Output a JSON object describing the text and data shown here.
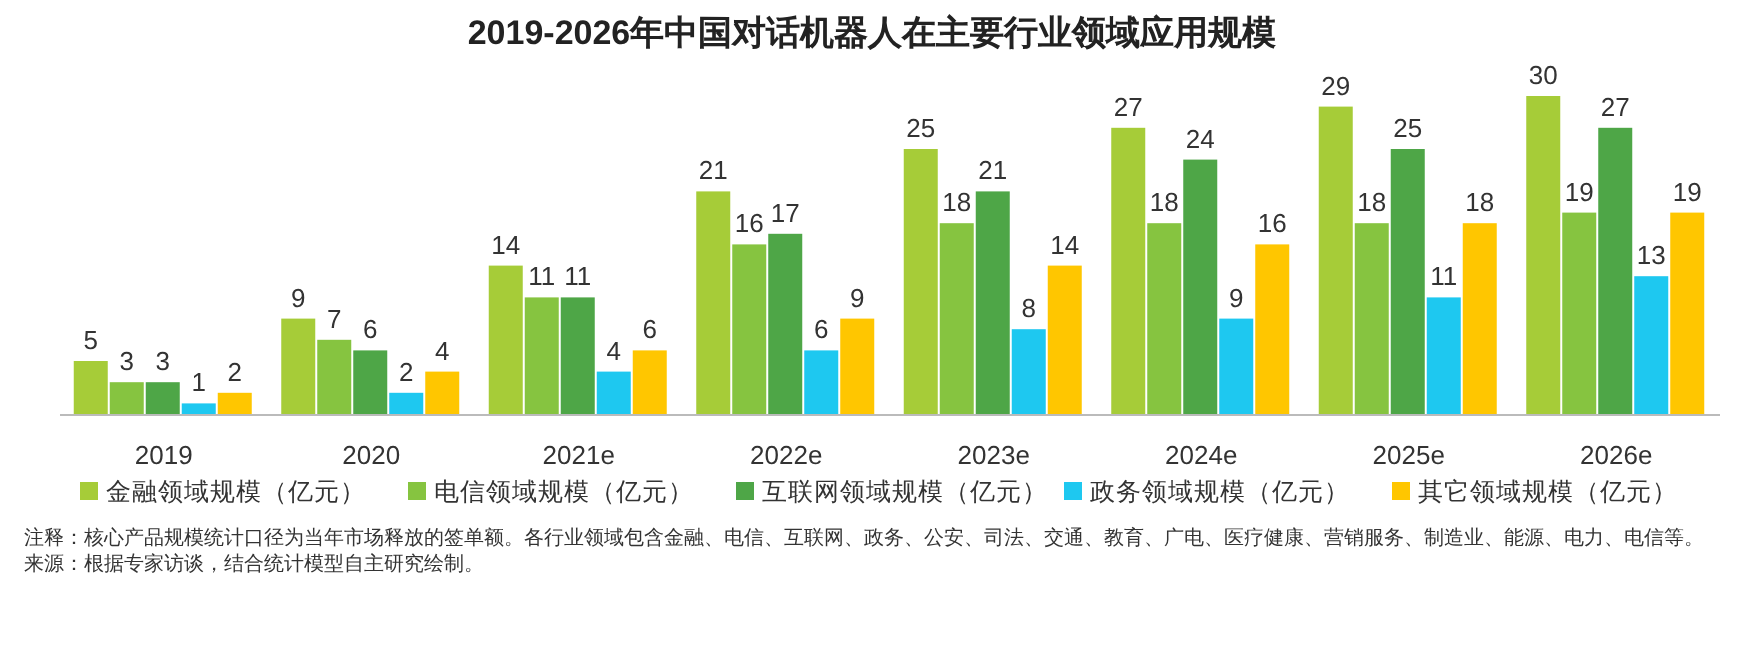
{
  "chart_data": {
    "type": "bar",
    "title": "2019-2026年中国对话机器人在主要行业领域应用规模",
    "categories": [
      "2019",
      "2020",
      "2021e",
      "2022e",
      "2023e",
      "2024e",
      "2025e",
      "2026e"
    ],
    "series": [
      {
        "name": "金融领域规模（亿元）",
        "color": "#a6cc38",
        "values": [
          5,
          9,
          14,
          21,
          25,
          27,
          29,
          30
        ]
      },
      {
        "name": "电信领域规模（亿元）",
        "color": "#86c440",
        "values": [
          3,
          7,
          11,
          16,
          18,
          18,
          18,
          19
        ]
      },
      {
        "name": "互联网领域规模（亿元）",
        "color": "#4ea647",
        "values": [
          3,
          6,
          11,
          17,
          21,
          24,
          25,
          27
        ]
      },
      {
        "name": "政务领域规模（亿元）",
        "color": "#1ec8f0",
        "values": [
          1,
          2,
          4,
          6,
          8,
          9,
          11,
          13
        ]
      },
      {
        "name": "其它领域规模（亿元）",
        "color": "#ffc600",
        "values": [
          2,
          4,
          6,
          9,
          14,
          16,
          18,
          19
        ]
      }
    ],
    "data_labels": true,
    "legend": "bottom",
    "grid": false,
    "annotations": [
      "注释：核心产品规模统计口径为当年市场释放的签单额。各行业领域包含金融、电信、互联网、政务、公安、司法、交通、教育、广电、医疗健康、营销服务、制造业、能源、电力、电信等。",
      "来源：根据专家访谈，结合统计模型自主研究绘制。"
    ]
  }
}
